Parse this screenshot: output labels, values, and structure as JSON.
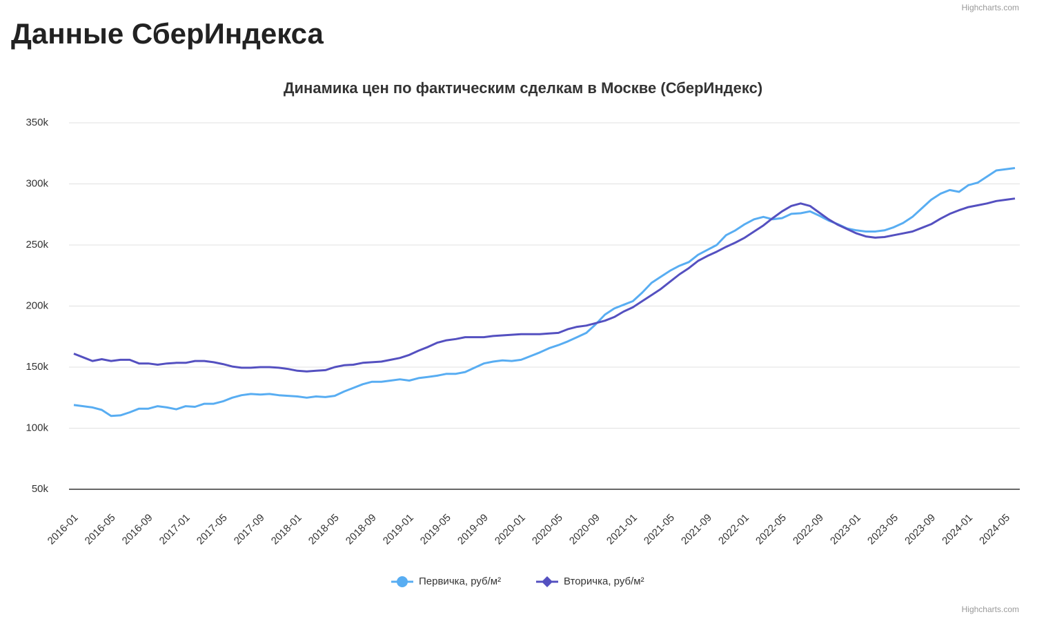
{
  "page_title": "Данные СберИндекса",
  "credits": [
    "Highcharts.com",
    "Highcharts.com"
  ],
  "chart_data": {
    "type": "line",
    "title": "Динамика цен по фактическим сделкам в Москве (СберИндекс)",
    "categories": [
      "2016-01",
      null,
      null,
      null,
      "2016-05",
      null,
      null,
      null,
      "2016-09",
      null,
      null,
      null,
      "2017-01",
      null,
      null,
      null,
      "2017-05",
      null,
      null,
      null,
      "2017-09",
      null,
      null,
      null,
      "2018-01",
      null,
      null,
      null,
      "2018-05",
      null,
      null,
      null,
      "2018-09",
      null,
      null,
      null,
      "2019-01",
      null,
      null,
      null,
      "2019-05",
      null,
      null,
      null,
      "2019-09",
      null,
      null,
      null,
      "2020-01",
      null,
      null,
      null,
      "2020-05",
      null,
      null,
      null,
      "2020-09",
      null,
      null,
      null,
      "2021-01",
      null,
      null,
      null,
      "2021-05",
      null,
      null,
      null,
      "2021-09",
      null,
      null,
      null,
      "2022-01",
      null,
      null,
      null,
      "2022-05",
      null,
      null,
      null,
      "2022-09",
      null,
      null,
      null,
      "2023-01",
      null,
      null,
      null,
      "2023-05",
      null,
      null,
      null,
      "2023-09",
      null,
      null,
      null,
      "2024-01",
      null,
      null,
      null,
      "2024-05",
      null
    ],
    "series": [
      {
        "name": "Первичка, руб/м²",
        "color": "#58adf2",
        "marker": "circle",
        "values": [
          119000,
          118000,
          117000,
          115000,
          110000,
          110500,
          113000,
          116000,
          116000,
          118000,
          117000,
          115500,
          118000,
          117500,
          120000,
          120000,
          122000,
          125000,
          127000,
          128000,
          127500,
          128000,
          127000,
          126500,
          126000,
          125000,
          126000,
          125500,
          126500,
          130000,
          133000,
          136000,
          138000,
          138000,
          139000,
          140000,
          139000,
          141000,
          142000,
          143000,
          144500,
          144500,
          146000,
          149500,
          153000,
          154500,
          155500,
          155000,
          156000,
          159000,
          162000,
          165500,
          168000,
          171000,
          174500,
          178000,
          185000,
          193000,
          198000,
          201000,
          204000,
          211000,
          219000,
          224000,
          229000,
          233000,
          236000,
          242000,
          246000,
          250000,
          258000,
          262000,
          267000,
          271000,
          273000,
          271000,
          272000,
          275500,
          276000,
          277500,
          274000,
          270000,
          267000,
          263500,
          262000,
          261000,
          261000,
          262000,
          264500,
          268000,
          273000,
          280000,
          287000,
          292000,
          295000,
          293500,
          299000,
          301000,
          306000,
          311000,
          312000,
          313000
        ]
      },
      {
        "name": "Вторичка, руб/м²",
        "color": "#5450c0",
        "marker": "diamond",
        "values": [
          161000,
          158000,
          155000,
          156500,
          155000,
          156000,
          156000,
          153000,
          153000,
          152000,
          153000,
          153500,
          153500,
          155000,
          155000,
          154000,
          152500,
          150500,
          149500,
          149500,
          150000,
          150000,
          149500,
          148500,
          147000,
          146500,
          147000,
          147500,
          150000,
          151500,
          152000,
          153500,
          154000,
          154500,
          156000,
          157500,
          160000,
          163500,
          166500,
          170000,
          172000,
          173000,
          174500,
          174500,
          174500,
          175500,
          176000,
          176500,
          177000,
          177000,
          177000,
          177500,
          178000,
          181000,
          183000,
          184000,
          186000,
          188000,
          191000,
          195500,
          199000,
          204000,
          209000,
          214000,
          220000,
          226000,
          231000,
          237000,
          241000,
          244500,
          248500,
          252000,
          256000,
          261000,
          266000,
          272000,
          277500,
          282000,
          284000,
          282000,
          276500,
          271000,
          266500,
          263000,
          259500,
          257000,
          256000,
          256500,
          258000,
          259500,
          261000,
          264000,
          267000,
          271500,
          275500,
          278500,
          281000,
          282500,
          284000,
          286000,
          287000,
          288000
        ]
      }
    ],
    "ylim": [
      50000,
      350000
    ],
    "yticks": [
      {
        "value": 50000,
        "label": "50k"
      },
      {
        "value": 100000,
        "label": "100k"
      },
      {
        "value": 150000,
        "label": "150k"
      },
      {
        "value": 200000,
        "label": "200k"
      },
      {
        "value": 250000,
        "label": "250k"
      },
      {
        "value": 300000,
        "label": "300k"
      },
      {
        "value": 350000,
        "label": "350k"
      }
    ],
    "grid": true,
    "legend": "bottom"
  }
}
